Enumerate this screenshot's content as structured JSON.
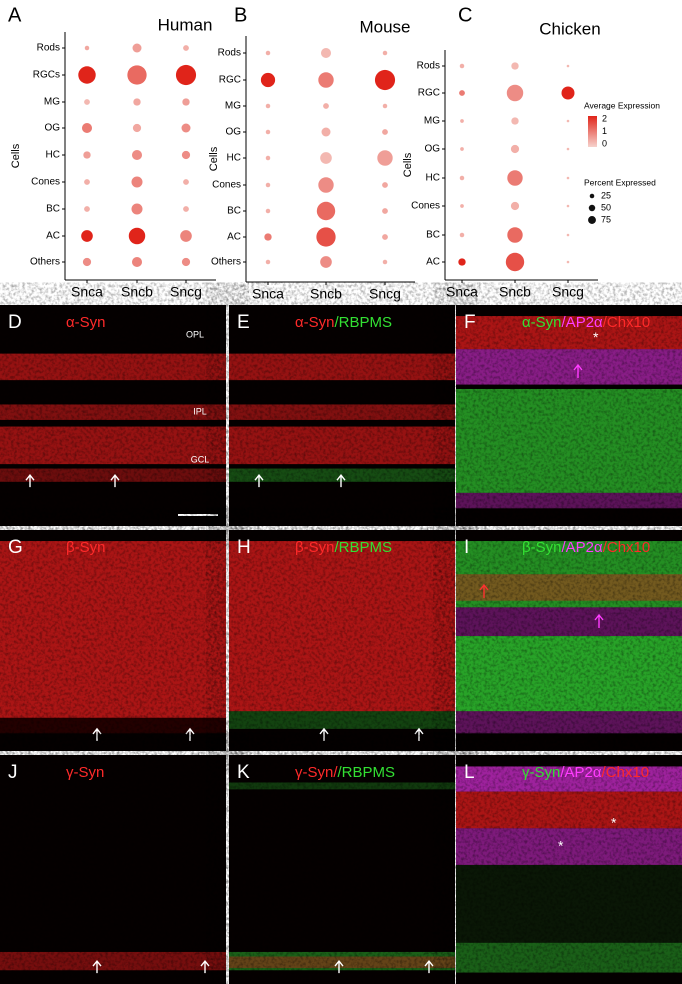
{
  "chart_data": [
    {
      "type": "dot",
      "panel": "A",
      "title": "Human",
      "ylabel": "Cells",
      "categories": [
        "Snca",
        "Sncb",
        "Sncg"
      ],
      "rows": [
        "Rods",
        "RGCs",
        "MG",
        "OG",
        "HC",
        "Cones",
        "BC",
        "AC",
        "Others"
      ],
      "percent": [
        [
          3,
          45,
          5,
          15,
          8,
          5,
          5,
          20,
          10
        ],
        [
          12,
          55,
          8,
          10,
          15,
          18,
          18,
          40,
          15
        ],
        [
          5,
          60,
          8,
          12,
          10,
          5,
          5,
          20,
          10
        ]
      ],
      "expression": [
        [
          0.5,
          2,
          0.3,
          1,
          0.6,
          0.4,
          0.4,
          2,
          0.8
        ],
        [
          0.6,
          1.2,
          0.5,
          0.5,
          0.8,
          0.9,
          0.9,
          2,
          0.9
        ],
        [
          0.4,
          2,
          0.6,
          0.8,
          0.8,
          0.4,
          0.4,
          0.9,
          0.8
        ]
      ]
    },
    {
      "type": "dot",
      "panel": "B",
      "title": "Mouse",
      "ylabel": "Cells",
      "categories": [
        "Snca",
        "Sncb",
        "Sncg"
      ],
      "rows": [
        "Rods",
        "RGC",
        "MG",
        "OG",
        "HC",
        "Cones",
        "BC",
        "AC",
        "Others"
      ],
      "percent": [
        [
          3,
          30,
          3,
          3,
          3,
          3,
          3,
          8,
          3
        ],
        [
          15,
          35,
          5,
          12,
          20,
          35,
          50,
          55,
          20
        ],
        [
          3,
          60,
          3,
          5,
          35,
          5,
          5,
          5,
          3
        ]
      ],
      "expression": [
        [
          0.4,
          2,
          0.4,
          0.4,
          0.4,
          0.4,
          0.4,
          1,
          0.4
        ],
        [
          0.3,
          1,
          0.4,
          0.4,
          0.3,
          0.8,
          1.2,
          1.5,
          0.8
        ],
        [
          0.4,
          2,
          0.4,
          0.5,
          0.6,
          0.5,
          0.5,
          0.5,
          0.4
        ]
      ]
    },
    {
      "type": "dot",
      "panel": "C",
      "title": "Chicken",
      "ylabel": "Cells",
      "categories": [
        "Snca",
        "Sncb",
        "Sncg"
      ],
      "rows": [
        "Rods",
        "RGC",
        "MG",
        "OG",
        "HC",
        "Cones",
        "BC",
        "AC"
      ],
      "percent": [
        [
          3,
          5,
          2,
          2,
          3,
          2,
          3,
          8
        ],
        [
          8,
          40,
          8,
          10,
          35,
          10,
          35,
          50
        ],
        [
          1,
          25,
          1,
          1,
          1,
          1,
          1,
          1
        ]
      ],
      "expression": [
        [
          0.4,
          1,
          0.4,
          0.4,
          0.4,
          0.4,
          0.4,
          2
        ],
        [
          0.3,
          0.8,
          0.3,
          0.4,
          1,
          0.4,
          1.2,
          1.5
        ],
        [
          0.3,
          2,
          0.3,
          0.3,
          0.3,
          0.3,
          0.3,
          0.3
        ]
      ],
      "legend": {
        "color_title": "Average Expression",
        "color_ticks": [
          2,
          1,
          0
        ],
        "low_color": "#f6d2cc",
        "high_color": "#e0241a",
        "size_title": "Percent Expressed",
        "size_ticks": [
          25,
          50,
          75
        ]
      }
    }
  ],
  "panels": [
    {
      "letter": "D",
      "label": [
        {
          "text": "α-Syn",
          "color": "#ff2a2a"
        }
      ],
      "layers": [
        "OPL",
        "IPL",
        "GCL"
      ]
    },
    {
      "letter": "E",
      "label": [
        {
          "text": "α-Syn",
          "color": "#ff2a2a"
        },
        {
          "text": "/RBPMS",
          "color": "#33e033"
        }
      ]
    },
    {
      "letter": "F",
      "label": [
        {
          "text": "α-Syn",
          "color": "#33e033"
        },
        {
          "text": "/AP2α",
          "color": "#ff3cff"
        },
        {
          "text": "/Chx10",
          "color": "#ff2a2a"
        }
      ],
      "marks": [
        "*"
      ]
    },
    {
      "letter": "G",
      "label": [
        {
          "text": "β-Syn",
          "color": "#ff2a2a"
        }
      ]
    },
    {
      "letter": "H",
      "label": [
        {
          "text": "β-Syn",
          "color": "#ff2a2a"
        },
        {
          "text": "/RBPMS",
          "color": "#33e033"
        }
      ]
    },
    {
      "letter": "I",
      "label": [
        {
          "text": "β-Syn",
          "color": "#33e033"
        },
        {
          "text": "/AP2α",
          "color": "#ff3cff"
        },
        {
          "text": "/Chx10",
          "color": "#ff2a2a"
        }
      ]
    },
    {
      "letter": "J",
      "label": [
        {
          "text": "γ-Syn",
          "color": "#ff2a2a"
        }
      ]
    },
    {
      "letter": "K",
      "label": [
        {
          "text": "γ-Syn/",
          "color": "#ff2a2a"
        },
        {
          "text": "/RBPMS",
          "color": "#33e033"
        }
      ]
    },
    {
      "letter": "L",
      "label": [
        {
          "text": "γ-Syn",
          "color": "#33e033"
        },
        {
          "text": "/AP2α",
          "color": "#ff3cff"
        },
        {
          "text": "/Chx10",
          "color": "#ff2a2a"
        }
      ],
      "marks": [
        "*",
        "*"
      ]
    }
  ]
}
